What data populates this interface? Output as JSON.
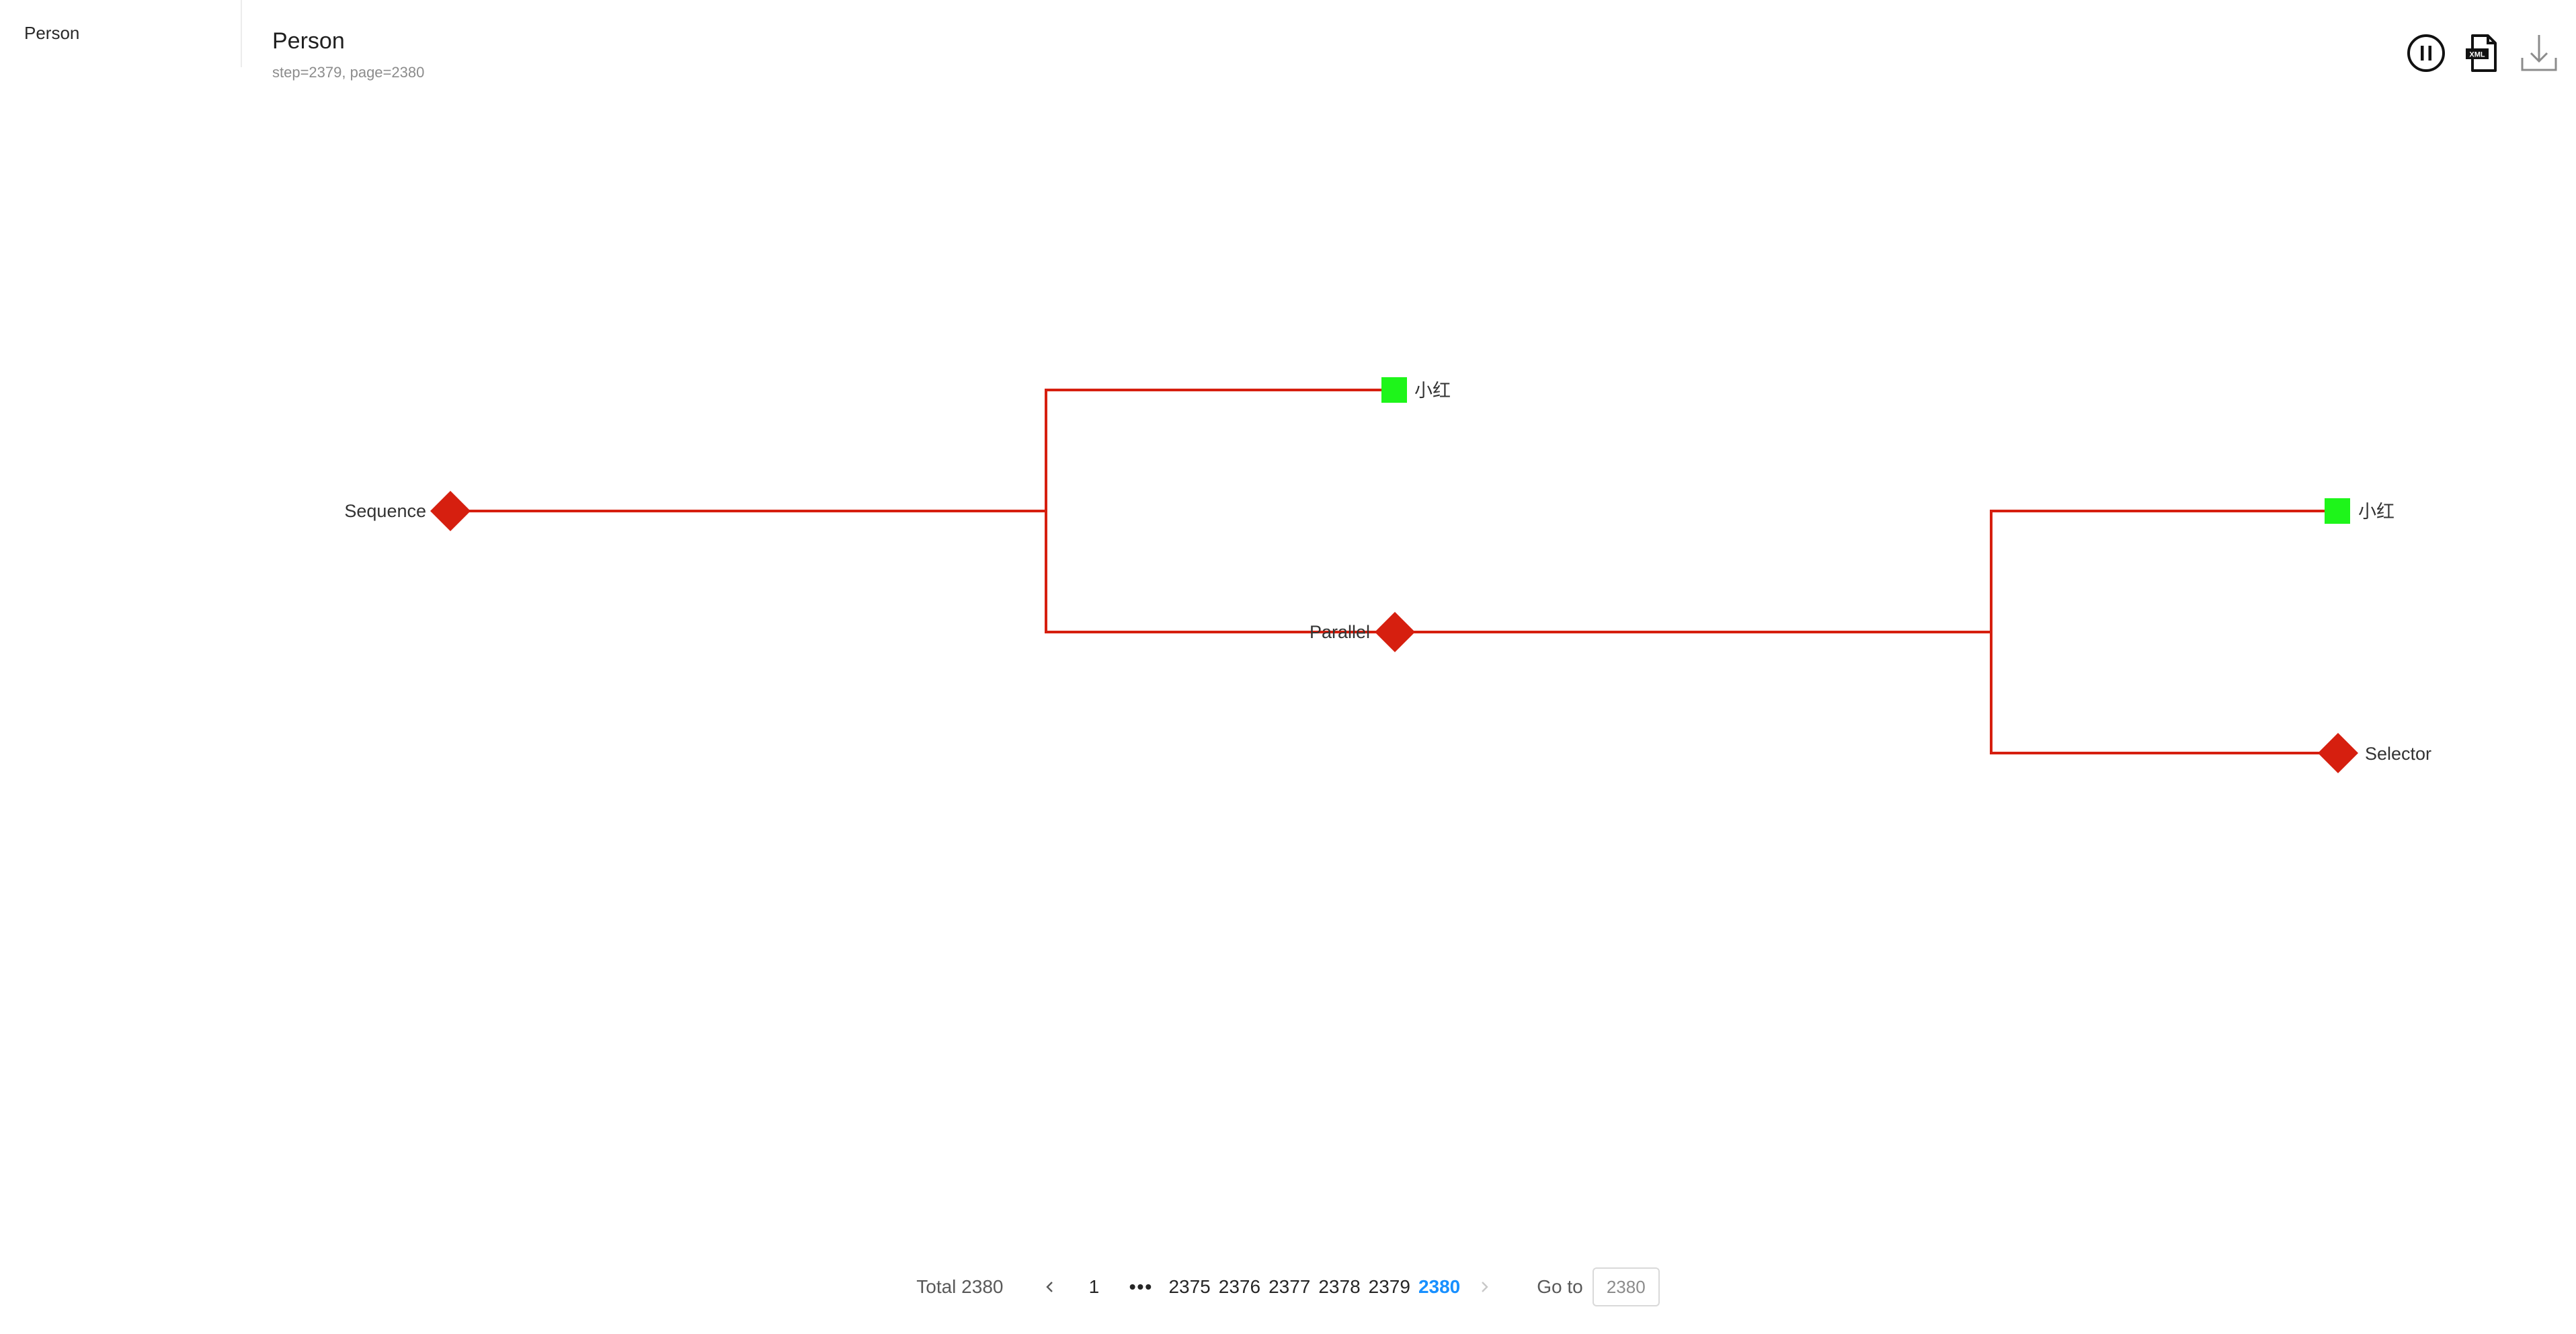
{
  "sidebar": {
    "items": [
      {
        "label": "Person"
      }
    ]
  },
  "header": {
    "title": "Person",
    "subtitle": "step=2379, page=2380"
  },
  "toolbar": {
    "icons": [
      "pause-circle-icon",
      "xml-file-icon",
      "download-icon"
    ]
  },
  "tree": {
    "colors": {
      "edge": "#d61f0f",
      "composite": "#d61f0f",
      "action": "#1ef51a"
    },
    "nodes": {
      "sequence": {
        "label": "Sequence",
        "shape": "diamond"
      },
      "action_top": {
        "label": "小红",
        "shape": "square"
      },
      "parallel": {
        "label": "Parallel",
        "shape": "diamond"
      },
      "action_right": {
        "label": "小红",
        "shape": "square"
      },
      "selector": {
        "label": "Selector",
        "shape": "diamond"
      }
    }
  },
  "pagination": {
    "total_text": "Total 2380",
    "first_page": "1",
    "ellipsis": "•••",
    "pages": [
      "2375",
      "2376",
      "2377",
      "2378",
      "2379",
      "2380"
    ],
    "current": "2380",
    "goto_label": "Go to",
    "goto_value": "2380"
  }
}
